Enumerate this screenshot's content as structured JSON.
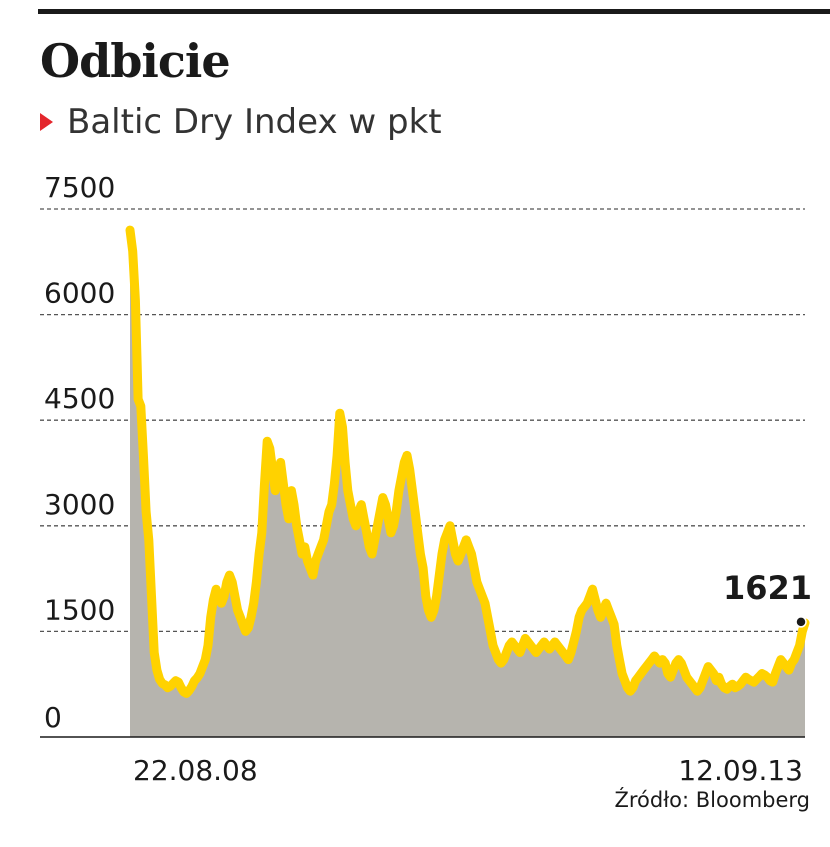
{
  "header": {
    "title": "Odbicie",
    "subtitle": "Baltic Dry Index w pkt"
  },
  "footer": {
    "source": "Źródło: Bloomberg"
  },
  "colors": {
    "line": "#ffd200",
    "area": "#b6b4ae",
    "marker": "#e4262c",
    "text": "#1a1a1a",
    "grid": "#555555"
  },
  "chart_data": {
    "type": "line",
    "title": "Odbicie",
    "subtitle": "Baltic Dry Index w pkt",
    "xlabel": "",
    "ylabel": "",
    "ylim": [
      0,
      7500
    ],
    "yticks": [
      "0",
      "1500",
      "3000",
      "4500",
      "6000",
      "7500"
    ],
    "xticks": [
      "22.08.08",
      "12.09.13"
    ],
    "grid": true,
    "legend": "none",
    "x_range": [
      "2008-08-22",
      "2013-09-12"
    ],
    "series": [
      {
        "values": [
          7200,
          6900,
          6200,
          4800,
          4700,
          4000,
          3200,
          2800,
          2000,
          1200,
          950,
          820,
          760,
          740,
          700,
          720,
          760,
          800,
          780,
          700,
          640,
          620,
          660,
          720,
          800,
          840,
          900,
          1000,
          1100,
          1300,
          1700,
          1950,
          2100,
          2000,
          1900,
          2000,
          2200,
          2300,
          2200,
          2000,
          1800,
          1700,
          1600,
          1500,
          1550,
          1700,
          1900,
          2200,
          2600,
          2900,
          3600,
          4200,
          4100,
          3800,
          3500,
          3700,
          3900,
          3600,
          3300,
          3100,
          3500,
          3300,
          3000,
          2800,
          2600,
          2700,
          2500,
          2400,
          2300,
          2500,
          2600,
          2700,
          2800,
          3000,
          3200,
          3300,
          3600,
          4000,
          4600,
          4400,
          3900,
          3500,
          3300,
          3100,
          3000,
          3200,
          3300,
          3100,
          2900,
          2700,
          2600,
          2800,
          3000,
          3200,
          3400,
          3300,
          3100,
          2900,
          3000,
          3200,
          3500,
          3700,
          3900,
          4000,
          3800,
          3500,
          3200,
          2900,
          2600,
          2400,
          2000,
          1800,
          1700,
          1800,
          2000,
          2300,
          2600,
          2800,
          2900,
          3000,
          2800,
          2600,
          2500,
          2600,
          2700,
          2800,
          2700,
          2600,
          2400,
          2200,
          2100,
          2000,
          1900,
          1700,
          1500,
          1300,
          1200,
          1100,
          1050,
          1100,
          1200,
          1300,
          1350,
          1300,
          1250,
          1200,
          1300,
          1400,
          1350,
          1300,
          1250,
          1200,
          1250,
          1300,
          1350,
          1300,
          1250,
          1300,
          1350,
          1300,
          1250,
          1200,
          1150,
          1100,
          1200,
          1350,
          1500,
          1700,
          1800,
          1850,
          1900,
          2000,
          2100,
          1950,
          1800,
          1700,
          1800,
          1900,
          1800,
          1700,
          1600,
          1300,
          1100,
          900,
          800,
          700,
          650,
          700,
          800,
          850,
          900,
          950,
          1000,
          1050,
          1100,
          1150,
          1100,
          1050,
          1100,
          1050,
          900,
          850,
          950,
          1050,
          1100,
          1050,
          950,
          850,
          800,
          750,
          700,
          650,
          700,
          800,
          900,
          1000,
          950,
          900,
          800,
          850,
          750,
          700,
          680,
          720,
          750,
          700,
          720,
          750,
          800,
          850,
          820,
          800,
          780,
          820,
          860,
          900,
          880,
          850,
          800,
          780,
          900,
          1000,
          1100,
          1050,
          1000,
          950,
          1050,
          1100,
          1200,
          1300,
          1500,
          1621
        ]
      }
    ],
    "annotations": [
      {
        "text": "1621",
        "value": 1621,
        "position": "last-point"
      }
    ]
  }
}
